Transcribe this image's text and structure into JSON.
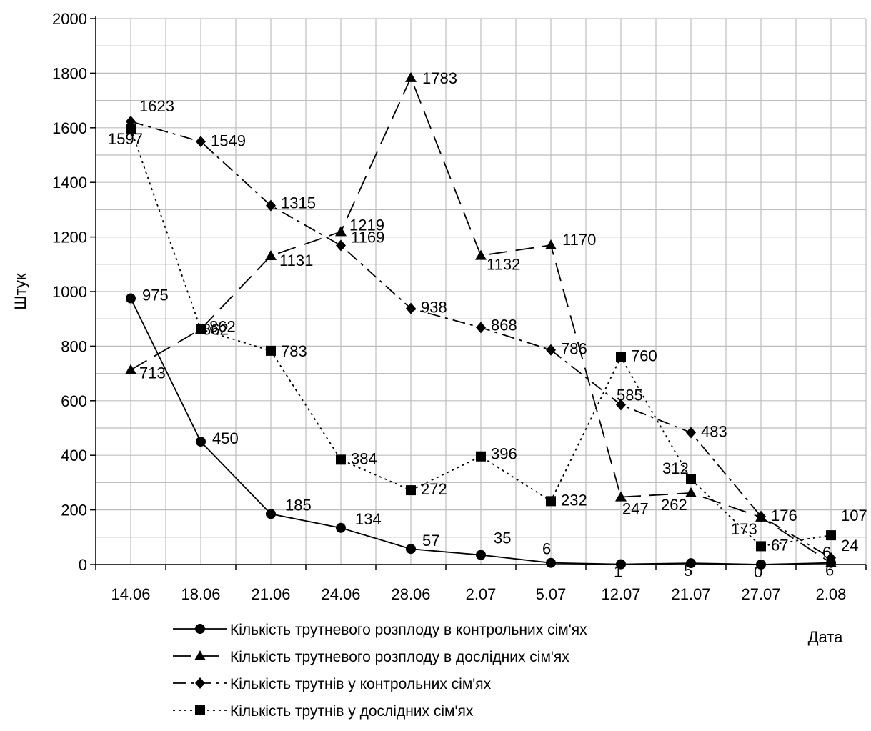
{
  "chart_data": {
    "type": "line",
    "title": "",
    "xlabel": "Дата",
    "ylabel": "Штук",
    "ylim": [
      0,
      2000
    ],
    "yticks": [
      0,
      200,
      400,
      600,
      800,
      1000,
      1200,
      1400,
      1600,
      1800,
      2000
    ],
    "grid": true,
    "legend_position": "bottom",
    "categories": [
      "14.06",
      "18.06",
      "21.06",
      "24.06",
      "28.06",
      "2.07",
      "5.07",
      "12.07",
      "21.07",
      "27.07",
      "2.08"
    ],
    "series": [
      {
        "name": "Кількість трутневого розплоду в контрольних сім'ях",
        "marker": "circle",
        "dash": "solid",
        "values": [
          975,
          450,
          185,
          134,
          57,
          35,
          6,
          1,
          5,
          0,
          6
        ],
        "labels": [
          "975",
          "450",
          "185",
          "134",
          "57",
          "35",
          "6",
          "1",
          "5",
          "0",
          "6"
        ]
      },
      {
        "name": "Кількість трутневого розплоду в дослідних сім'ях",
        "marker": "triangle",
        "dash": "longdash",
        "values": [
          713,
          862,
          1131,
          1219,
          1783,
          1132,
          1170,
          247,
          262,
          173,
          6
        ],
        "labels": [
          "713",
          "862",
          "1131",
          "1219",
          "1783",
          "1132",
          "1170",
          "247",
          "262",
          "173",
          "6"
        ]
      },
      {
        "name": "Кількість трутнів у контрольних сім'ях",
        "marker": "diamond",
        "dash": "dashdot",
        "values": [
          1623,
          1549,
          1315,
          1169,
          938,
          868,
          786,
          585,
          483,
          176,
          24
        ],
        "labels": [
          "1623",
          "1549",
          "1315",
          "1169",
          "938",
          "868",
          "786",
          "585",
          "483",
          "176",
          "24"
        ]
      },
      {
        "name": "Кількість трутнів у дослідних сім'ях",
        "marker": "square",
        "dash": "dotted",
        "values": [
          1597,
          862,
          783,
          384,
          272,
          396,
          232,
          760,
          312,
          67,
          107
        ],
        "labels": [
          "1597",
          "862",
          "783",
          "384",
          "272",
          "396",
          "232",
          "760",
          "312",
          "67",
          "107"
        ]
      }
    ]
  }
}
